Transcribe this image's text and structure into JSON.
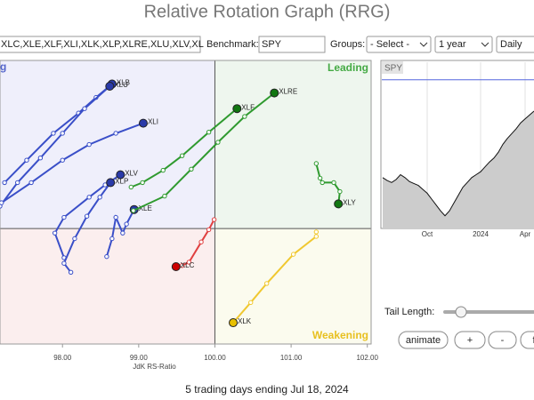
{
  "header": {
    "title": "Relative Rotation Graph (RRG)"
  },
  "controls": {
    "symbols": "XLC,XLE,XLF,XLI,XLK,XLP,XLRE,XLU,XLV,XL",
    "benchmark_label": "Benchmark:",
    "benchmark": "SPY",
    "groups_label": "Groups:",
    "groups": "- Select -",
    "period": "1 year",
    "interval": "Daily",
    "tail_length_label": "Tail Length:",
    "buttons": [
      "animate",
      "+",
      "-",
      "f"
    ]
  },
  "chart_data": [
    {
      "type": "rrg",
      "x_label": "JdK RS-Ratio",
      "xlim": [
        97.18,
        102.05
      ],
      "ylim": [
        98.97,
        101.5
      ],
      "xcenter": 100,
      "ycenter": 100,
      "xticks": [
        {
          "value": 98,
          "label": "98.00"
        },
        {
          "value": 99,
          "label": "99.00"
        },
        {
          "value": 100,
          "label": "100.00"
        },
        {
          "value": 101,
          "label": "101.00"
        },
        {
          "value": 102,
          "label": "102.00"
        }
      ],
      "quadrant_labels": [
        {
          "text": "Leading",
          "color": "#44aa44"
        },
        {
          "text": "Weakening",
          "color": "#e8c020"
        },
        {
          "text": "g",
          "color": "#5566cc"
        }
      ],
      "series": [
        {
          "name": "XLB",
          "color": "#3a4fc8",
          "head_color": "#2a3aa8",
          "x": [
            97.24,
            97.53,
            97.88,
            98.21,
            98.44,
            98.65
          ],
          "values": [
            100.41,
            100.61,
            100.85,
            101.03,
            101.17,
            101.29
          ]
        },
        {
          "name": "XLU",
          "color": "#3a4fc8",
          "head_color": "#2a3aa8",
          "x": [
            97.18,
            97.41,
            97.71,
            98.0,
            98.29,
            98.62
          ],
          "values": [
            100.2,
            100.41,
            100.63,
            100.85,
            101.07,
            101.27
          ]
        },
        {
          "name": "XLI",
          "color": "#3a4fc8",
          "head_color": "#2a3aa8",
          "x": [
            97.2,
            97.59,
            98.0,
            98.35,
            98.7,
            99.06
          ],
          "values": [
            100.23,
            100.41,
            100.61,
            100.75,
            100.85,
            100.94
          ]
        },
        {
          "name": "XLV",
          "color": "#3a4fc8",
          "head_color": "#2a3aa8",
          "x": [
            98.02,
            97.9,
            98.02,
            98.35,
            98.56,
            98.76
          ],
          "values": [
            99.74,
            99.96,
            100.1,
            100.28,
            100.39,
            100.48
          ]
        },
        {
          "name": "XLP",
          "color": "#3a4fc8",
          "head_color": "#2a3aa8",
          "x": [
            98.11,
            98.02,
            98.16,
            98.32,
            98.49,
            98.63
          ],
          "values": [
            99.61,
            99.69,
            99.91,
            100.11,
            100.28,
            100.41
          ]
        },
        {
          "name": "XLE",
          "color": "#3a4fc8",
          "head_color": "#2a3aa8",
          "x": [
            98.58,
            98.65,
            98.7,
            98.79,
            98.84,
            98.94
          ],
          "values": [
            99.75,
            99.91,
            100.1,
            99.96,
            100.04,
            100.17
          ]
        },
        {
          "name": "XLC",
          "color": "#e04040",
          "head_color": "#cc0000",
          "x": [
            99.99,
            99.92,
            99.82,
            99.66,
            99.57,
            99.49
          ],
          "values": [
            100.08,
            99.99,
            99.88,
            99.7,
            99.67,
            99.66
          ]
        },
        {
          "name": "XLF",
          "color": "#2f9a2f",
          "head_color": "#117711",
          "x": [
            98.9,
            99.05,
            99.32,
            99.57,
            99.92,
            100.29
          ],
          "values": [
            100.37,
            100.41,
            100.52,
            100.65,
            100.86,
            101.07
          ]
        },
        {
          "name": "XLRE",
          "color": "#2f9a2f",
          "head_color": "#117711",
          "x": [
            98.93,
            99.34,
            99.69,
            100.04,
            100.39,
            100.78
          ],
          "values": [
            100.16,
            100.29,
            100.53,
            100.77,
            101.0,
            101.21
          ]
        },
        {
          "name": "XLY",
          "color": "#2f9a2f",
          "head_color": "#117711",
          "x": [
            101.33,
            101.38,
            101.41,
            101.56,
            101.64,
            101.62
          ],
          "values": [
            100.58,
            100.45,
            100.41,
            100.41,
            100.33,
            100.22
          ]
        },
        {
          "name": "XLK",
          "color": "#f0c830",
          "head_color": "#e8c000",
          "x": [
            101.33,
            101.33,
            101.03,
            100.68,
            100.47,
            100.24
          ],
          "values": [
            99.97,
            99.93,
            99.77,
            99.51,
            99.34,
            99.16
          ]
        }
      ]
    },
    {
      "type": "area",
      "title": "SPY",
      "color": "#cccccc",
      "line_color": "#111111",
      "ref_color": "#5566dd",
      "grid": true,
      "ylim": [
        400,
        570
      ],
      "ref_value": 552,
      "categories": [
        null,
        null,
        null,
        null,
        null,
        null,
        null,
        null,
        null,
        null,
        "Oct",
        null,
        null,
        null,
        null,
        null,
        null,
        null,
        null,
        null,
        null,
        null,
        "2024",
        null,
        null,
        null,
        null,
        null,
        null,
        null,
        null,
        null,
        "Apr",
        null,
        null
      ],
      "values": [
        452,
        449,
        447,
        450,
        455,
        452,
        448,
        446,
        444,
        440,
        436,
        430,
        424,
        418,
        413,
        418,
        426,
        434,
        442,
        447,
        452,
        455,
        458,
        463,
        468,
        472,
        478,
        486,
        492,
        497,
        502,
        508,
        512,
        516,
        520
      ]
    }
  ],
  "footer": "5 trading days ending Jul 18, 2024"
}
